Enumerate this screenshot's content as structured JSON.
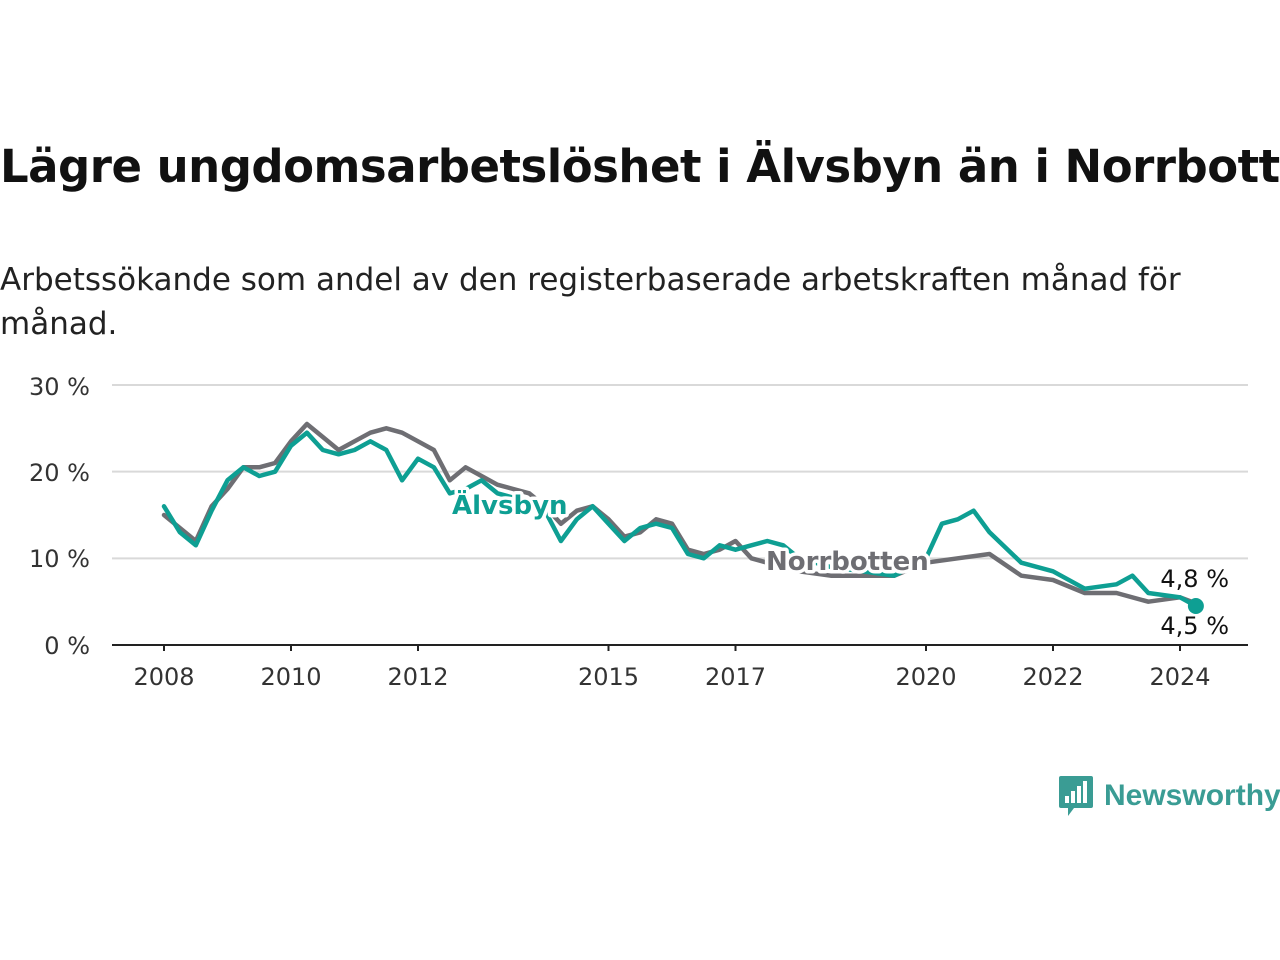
{
  "chart_data": {
    "type": "line",
    "title": "Lägre ungdomsarbetslöshet i Älvsbyn än i Norrbotten",
    "subtitle": "Arbetssökande som andel av den registerbaserade arbetskraften månad för månad.",
    "xlabel": "",
    "ylabel": "",
    "ylim": [
      0,
      30
    ],
    "y_ticks": [
      0,
      10,
      20,
      30
    ],
    "y_tick_labels": [
      "0 %",
      "10 %",
      "20 %",
      "30 %"
    ],
    "x_ticks": [
      2008,
      2010,
      2012,
      2015,
      2017,
      2020,
      2022,
      2024
    ],
    "x_tick_labels": [
      "2008",
      "2010",
      "2012",
      "2015",
      "2017",
      "2020",
      "2022",
      "2024"
    ],
    "grid": true,
    "series": [
      {
        "name": "Norrbotten",
        "color": "#6e6e73",
        "points": [
          [
            2008.0,
            15.0
          ],
          [
            2008.25,
            13.5
          ],
          [
            2008.5,
            12.0
          ],
          [
            2008.75,
            16.0
          ],
          [
            2009.0,
            18.0
          ],
          [
            2009.25,
            20.5
          ],
          [
            2009.5,
            20.5
          ],
          [
            2009.75,
            21.0
          ],
          [
            2010.0,
            23.5
          ],
          [
            2010.25,
            25.5
          ],
          [
            2010.5,
            24.0
          ],
          [
            2010.75,
            22.5
          ],
          [
            2011.0,
            23.5
          ],
          [
            2011.25,
            24.5
          ],
          [
            2011.5,
            25.0
          ],
          [
            2011.75,
            24.5
          ],
          [
            2012.0,
            23.5
          ],
          [
            2012.25,
            22.5
          ],
          [
            2012.5,
            19.0
          ],
          [
            2012.75,
            20.5
          ],
          [
            2013.0,
            19.5
          ],
          [
            2013.25,
            18.5
          ],
          [
            2013.5,
            18.0
          ],
          [
            2013.75,
            17.5
          ],
          [
            2014.0,
            16.0
          ],
          [
            2014.25,
            14.0
          ],
          [
            2014.5,
            15.5
          ],
          [
            2014.75,
            16.0
          ],
          [
            2015.0,
            14.5
          ],
          [
            2015.25,
            12.5
          ],
          [
            2015.5,
            13.0
          ],
          [
            2015.75,
            14.5
          ],
          [
            2016.0,
            14.0
          ],
          [
            2016.25,
            11.0
          ],
          [
            2016.5,
            10.5
          ],
          [
            2016.75,
            11.0
          ],
          [
            2017.0,
            12.0
          ],
          [
            2017.25,
            10.0
          ],
          [
            2017.5,
            9.5
          ],
          [
            2017.75,
            9.0
          ],
          [
            2018.0,
            8.5
          ],
          [
            2018.5,
            8.0
          ],
          [
            2019.0,
            8.0
          ],
          [
            2019.5,
            8.0
          ],
          [
            2020.0,
            9.5
          ],
          [
            2020.5,
            10.0
          ],
          [
            2021.0,
            10.5
          ],
          [
            2021.5,
            8.0
          ],
          [
            2022.0,
            7.5
          ],
          [
            2022.5,
            6.0
          ],
          [
            2023.0,
            6.0
          ],
          [
            2023.5,
            5.0
          ],
          [
            2024.0,
            5.5
          ],
          [
            2024.25,
            4.8
          ]
        ]
      },
      {
        "name": "Älvsbyn",
        "color": "#0e9f93",
        "points": [
          [
            2008.0,
            16.0
          ],
          [
            2008.25,
            13.0
          ],
          [
            2008.5,
            11.5
          ],
          [
            2008.75,
            15.5
          ],
          [
            2009.0,
            19.0
          ],
          [
            2009.25,
            20.5
          ],
          [
            2009.5,
            19.5
          ],
          [
            2009.75,
            20.0
          ],
          [
            2010.0,
            23.0
          ],
          [
            2010.25,
            24.5
          ],
          [
            2010.5,
            22.5
          ],
          [
            2010.75,
            22.0
          ],
          [
            2011.0,
            22.5
          ],
          [
            2011.25,
            23.5
          ],
          [
            2011.5,
            22.5
          ],
          [
            2011.75,
            19.0
          ],
          [
            2012.0,
            21.5
          ],
          [
            2012.25,
            20.5
          ],
          [
            2012.5,
            17.5
          ],
          [
            2012.75,
            18.0
          ],
          [
            2013.0,
            19.0
          ],
          [
            2013.25,
            17.5
          ],
          [
            2013.5,
            17.0
          ],
          [
            2013.75,
            16.5
          ],
          [
            2014.0,
            15.5
          ],
          [
            2014.25,
            12.0
          ],
          [
            2014.5,
            14.5
          ],
          [
            2014.75,
            16.0
          ],
          [
            2015.0,
            14.0
          ],
          [
            2015.25,
            12.0
          ],
          [
            2015.5,
            13.5
          ],
          [
            2015.75,
            14.0
          ],
          [
            2016.0,
            13.5
          ],
          [
            2016.25,
            10.5
          ],
          [
            2016.5,
            10.0
          ],
          [
            2016.75,
            11.5
          ],
          [
            2017.0,
            11.0
          ],
          [
            2017.25,
            11.5
          ],
          [
            2017.5,
            12.0
          ],
          [
            2017.75,
            11.5
          ],
          [
            2018.0,
            10.0
          ],
          [
            2018.5,
            9.0
          ],
          [
            2019.0,
            8.5
          ],
          [
            2019.5,
            8.0
          ],
          [
            2020.0,
            10.0
          ],
          [
            2020.25,
            14.0
          ],
          [
            2020.5,
            14.5
          ],
          [
            2020.75,
            15.5
          ],
          [
            2021.0,
            13.0
          ],
          [
            2021.5,
            9.5
          ],
          [
            2022.0,
            8.5
          ],
          [
            2022.5,
            6.5
          ],
          [
            2023.0,
            7.0
          ],
          [
            2023.25,
            8.0
          ],
          [
            2023.5,
            6.0
          ],
          [
            2024.0,
            5.5
          ],
          [
            2024.25,
            4.5
          ]
        ]
      }
    ],
    "series_labels": [
      "Älvsbyn",
      "Norrbotten"
    ],
    "end_labels": [
      "4,8 %",
      "4,5 %"
    ]
  },
  "brand": {
    "name": "Newsworthy",
    "color": "#3a9c94"
  }
}
